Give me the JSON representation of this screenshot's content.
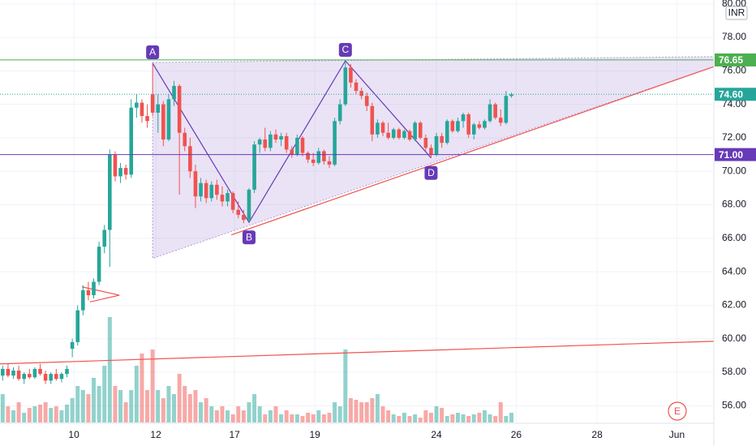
{
  "chart_data": {
    "type": "candlestick",
    "currency": "INR",
    "open": [
      57.8,
      58.2,
      57.8,
      58.1,
      57.6,
      57.9,
      57.7,
      58.2,
      57.9,
      57.5,
      57.9,
      57.6,
      57.9,
      59.4,
      59.8,
      61.7,
      62.9,
      62.6,
      63.4,
      65.5,
      66.5,
      71.0,
      69.7,
      70.2,
      69.8,
      73.8,
      74.1,
      73.3,
      74.6,
      73.5,
      74.0,
      71.9,
      74.3,
      75.1,
      72.3,
      71.5,
      70.0,
      68.5,
      69.3,
      68.4,
      69.2,
      68.6,
      68.2,
      68.7,
      67.7,
      67.4,
      67.1,
      68.9,
      71.6,
      71.9,
      71.4,
      72.2,
      71.9,
      72.1,
      71.3,
      71.0,
      72.0,
      71.1,
      70.7,
      70.5,
      71.2,
      70.6,
      70.4,
      73.0,
      74.0,
      76.2,
      75.3,
      74.8,
      74.5,
      73.9,
      72.2,
      72.9,
      72.3,
      72.0,
      72.5,
      72.0,
      72.4,
      71.9,
      72.9,
      72.0,
      71.4,
      71.0,
      72.1,
      71.7,
      73.0,
      72.4,
      73.0,
      73.4,
      72.2,
      72.8,
      72.6,
      73.0,
      74.0,
      73.2,
      72.9,
      74.5
    ],
    "high": [
      58.4,
      58.5,
      58.3,
      58.4,
      58.0,
      58.2,
      58.3,
      58.5,
      58.1,
      58.0,
      58.2,
      58.0,
      58.4,
      60.0,
      62.0,
      63.2,
      63.4,
      63.6,
      65.8,
      66.8,
      71.3,
      71.2,
      70.5,
      70.4,
      74.3,
      74.6,
      74.3,
      74.0,
      76.45,
      74.6,
      74.2,
      74.6,
      75.4,
      75.2,
      72.6,
      72.0,
      70.4,
      69.6,
      69.5,
      69.4,
      69.5,
      69.1,
      68.9,
      68.8,
      68.2,
      67.7,
      69.0,
      71.8,
      72.0,
      72.6,
      72.4,
      72.5,
      72.3,
      72.3,
      71.5,
      72.2,
      72.1,
      71.2,
      71.1,
      71.4,
      71.3,
      70.9,
      73.2,
      74.3,
      76.6,
      76.4,
      75.5,
      75.0,
      74.7,
      74.1,
      73.1,
      73.0,
      72.9,
      72.6,
      72.6,
      72.5,
      72.5,
      73.0,
      73.0,
      72.2,
      71.6,
      72.3,
      72.3,
      73.1,
      73.1,
      73.2,
      73.5,
      73.5,
      72.9,
      73.0,
      73.1,
      74.3,
      74.1,
      73.7,
      74.8,
      74.7
    ],
    "low": [
      57.5,
      57.7,
      57.6,
      57.5,
      57.3,
      57.6,
      57.6,
      57.8,
      57.3,
      57.3,
      57.5,
      57.4,
      57.7,
      58.9,
      59.6,
      61.4,
      62.3,
      62.4,
      63.2,
      65.1,
      64.3,
      69.4,
      69.3,
      69.5,
      69.6,
      73.2,
      72.9,
      72.6,
      73.3,
      72.3,
      71.5,
      71.8,
      73.9,
      68.6,
      71.2,
      69.6,
      67.8,
      68.2,
      68.1,
      68.2,
      68.3,
      67.9,
      67.9,
      67.5,
      67.2,
      66.9,
      66.95,
      68.7,
      71.1,
      71.2,
      71.2,
      71.7,
      71.5,
      71.1,
      70.8,
      70.9,
      70.9,
      70.5,
      70.3,
      70.4,
      70.4,
      70.2,
      70.3,
      72.8,
      73.9,
      75.0,
      74.6,
      74.3,
      73.6,
      71.8,
      72.0,
      72.1,
      71.9,
      71.9,
      71.9,
      71.9,
      71.8,
      71.8,
      71.9,
      71.2,
      70.8,
      70.9,
      71.4,
      71.6,
      72.3,
      72.3,
      72.6,
      72.0,
      71.9,
      72.5,
      72.5,
      72.9,
      73.1,
      72.7,
      72.8,
      74.4
    ],
    "close": [
      58.2,
      57.8,
      58.1,
      57.6,
      57.9,
      57.7,
      58.2,
      57.9,
      57.5,
      57.9,
      57.6,
      57.9,
      58.2,
      59.8,
      61.7,
      62.9,
      62.6,
      63.4,
      65.5,
      66.5,
      71.0,
      69.7,
      70.2,
      69.8,
      73.8,
      74.1,
      73.3,
      73.0,
      73.5,
      74.0,
      71.9,
      74.3,
      75.1,
      72.3,
      71.5,
      70.0,
      68.5,
      69.3,
      68.4,
      69.2,
      68.6,
      68.2,
      68.7,
      67.7,
      67.4,
      67.1,
      68.9,
      71.6,
      71.9,
      71.4,
      72.2,
      71.9,
      72.1,
      71.3,
      71.0,
      72.0,
      71.1,
      70.7,
      70.5,
      71.2,
      70.6,
      70.4,
      73.0,
      74.0,
      76.2,
      75.3,
      74.8,
      74.5,
      73.9,
      72.2,
      72.9,
      72.3,
      72.0,
      72.5,
      72.0,
      72.4,
      71.9,
      72.9,
      72.0,
      71.4,
      71.0,
      72.1,
      71.7,
      73.0,
      72.4,
      73.0,
      73.4,
      72.2,
      72.8,
      72.6,
      73.0,
      74.0,
      73.2,
      72.9,
      74.5,
      74.6
    ],
    "volume": [
      35,
      20,
      15,
      25,
      12,
      18,
      20,
      22,
      25,
      18,
      20,
      15,
      22,
      30,
      45,
      40,
      35,
      55,
      45,
      70,
      130,
      45,
      40,
      25,
      40,
      70,
      85,
      40,
      90,
      40,
      30,
      45,
      35,
      60,
      45,
      35,
      40,
      25,
      30,
      20,
      15,
      20,
      15,
      10,
      20,
      15,
      25,
      35,
      20,
      10,
      15,
      20,
      10,
      15,
      10,
      10,
      8,
      12,
      10,
      15,
      10,
      12,
      25,
      20,
      90,
      30,
      28,
      25,
      25,
      30,
      35,
      20,
      15,
      10,
      8,
      12,
      8,
      10,
      6,
      15,
      12,
      20,
      18,
      8,
      10,
      12,
      10,
      8,
      10,
      12,
      15,
      10,
      8,
      25,
      8,
      12
    ],
    "volume_lim": [
      0,
      130
    ],
    "up_color": "#26a69a",
    "down_color": "#ef5350",
    "ylim": [
      55.0,
      80.23
    ],
    "yticks": [
      {
        "value": 56,
        "label": "56.00"
      },
      {
        "value": 58,
        "label": "58.00"
      },
      {
        "value": 60,
        "label": "60.00"
      },
      {
        "value": 62,
        "label": "62.00"
      },
      {
        "value": 64,
        "label": "64.00"
      },
      {
        "value": 66,
        "label": "66.00"
      },
      {
        "value": 68,
        "label": "68.00"
      },
      {
        "value": 70,
        "label": "70.00"
      },
      {
        "value": 72,
        "label": "72.00"
      },
      {
        "value": 74,
        "label": "74.00"
      },
      {
        "value": 76,
        "label": "76.00"
      },
      {
        "value": 78,
        "label": "78.00"
      },
      {
        "value": 80,
        "label": "80.00"
      }
    ],
    "xlim": [
      -0.5,
      132.8
    ],
    "xticks": [
      {
        "value": 13.3,
        "label": "10"
      },
      {
        "value": 28.6,
        "label": "12"
      },
      {
        "value": 43.3,
        "label": "17"
      },
      {
        "value": 58.3,
        "label": "19"
      },
      {
        "value": 81.0,
        "label": "24"
      },
      {
        "value": 95.9,
        "label": "26"
      },
      {
        "value": 111.0,
        "label": "28"
      },
      {
        "value": 125.9,
        "label": "Jun"
      }
    ],
    "grid": true,
    "price_lines": [
      {
        "value": 76.65,
        "color": "#4caf50",
        "style": "solid"
      },
      {
        "value": 74.6,
        "label": "74.60",
        "color": "#26a69a",
        "style": "dotted"
      },
      {
        "value": 71,
        "label": "71.00",
        "color": "#673ab7",
        "style": "solid"
      }
    ],
    "triangle": {
      "x": [
        28,
        132.8,
        132.8,
        28
      ],
      "y": [
        76.5,
        76.85,
        76.25,
        64.8
      ],
      "fill": "rgba(149,117,205,0.2)",
      "stroke": "#b39ddb"
    },
    "trend_lines": [
      {
        "x": [
          42.7,
          132.8
        ],
        "y": [
          66.2,
          76.25
        ],
        "color": "#ef5350"
      },
      {
        "x": [
          -0.5,
          132.8
        ],
        "y": [
          58.5,
          59.85
        ],
        "color": "#ef5350"
      },
      {
        "x": [
          14.8,
          21.8,
          16.3
        ],
        "y": [
          63.1,
          62.6,
          62.2
        ],
        "color": "#ef5350"
      }
    ],
    "pattern": {
      "color": "#673ab7",
      "points": [
        {
          "label": "A",
          "x": 28,
          "y": 76.45
        },
        {
          "label": "B",
          "x": 46,
          "y": 66.95
        },
        {
          "label": "C",
          "x": 64,
          "y": 76.6
        },
        {
          "label": "D",
          "x": 80,
          "y": 70.8
        }
      ]
    },
    "event_marker": "E"
  }
}
